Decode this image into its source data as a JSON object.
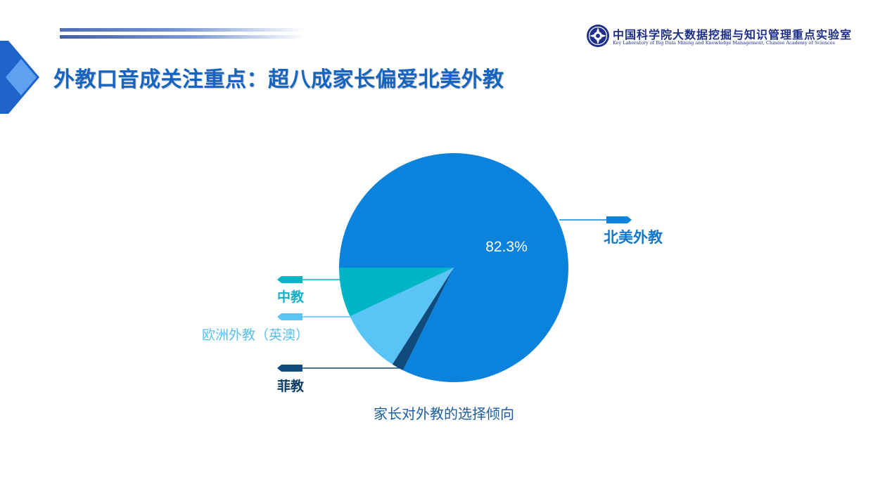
{
  "slide": {
    "title": "外教口音成关注重点：超八成家长偏爱北美外教"
  },
  "organization": {
    "name": "中国科学院大数据挖掘与知识管理重点实验室",
    "name_en": "Key Laboratory of Big Data Mining and Knowledge Management, Chinese Academy of Sciences"
  },
  "chart_data": {
    "type": "pie",
    "title": "家长对外教的选择倾向",
    "slices": [
      {
        "label": "北美外教",
        "value": 82.3,
        "color": "#0b83dc",
        "value_label": "82.3%"
      },
      {
        "label": "菲教",
        "value": 1.7,
        "color": "#0f4b7d"
      },
      {
        "label": "欧洲外教（英澳）",
        "value": 9.0,
        "color": "#5bc4f7"
      },
      {
        "label": "中教",
        "value": 7.0,
        "color": "#00b6c6"
      }
    ]
  }
}
